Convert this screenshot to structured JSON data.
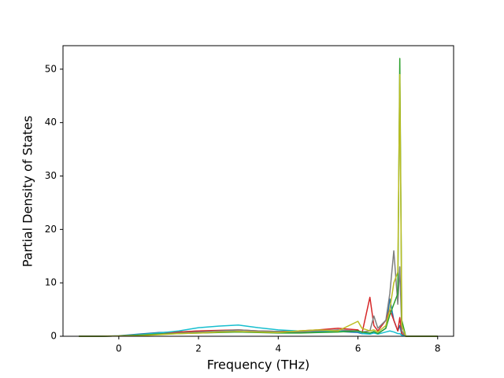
{
  "chart_data": {
    "type": "line",
    "xlabel": "Frequency (THz)",
    "ylabel": "Partial Density of States",
    "x": [
      -1,
      -0.5,
      0,
      0.5,
      1,
      1.5,
      2,
      2.5,
      3,
      3.5,
      4,
      4.5,
      5,
      5.5,
      6,
      6.1,
      6.3,
      6.4,
      6.5,
      6.7,
      6.8,
      6.9,
      7.0,
      7.05,
      7.1,
      7.2,
      8
    ],
    "series": [
      {
        "color": "#1f77b4",
        "values": [
          0,
          0,
          0.1,
          0.4,
          0.7,
          0.8,
          1,
          1,
          0.9,
          0.8,
          0.7,
          0.8,
          1,
          0.9,
          0.7,
          0.5,
          0.6,
          0.7,
          0.5,
          1.5,
          7,
          3,
          1,
          2,
          0.3,
          0,
          0
        ]
      },
      {
        "color": "#d62728",
        "values": [
          0,
          0,
          0.05,
          0.3,
          0.6,
          0.8,
          1,
          1.1,
          1.2,
          1,
          0.9,
          1,
          1.2,
          1.5,
          1.2,
          0.5,
          7.3,
          2,
          1,
          3,
          5,
          3,
          1,
          3.5,
          0.5,
          0,
          0
        ]
      },
      {
        "color": "#17becf",
        "values": [
          0,
          0,
          0.05,
          0.3,
          0.6,
          1,
          1.6,
          1.9,
          2.1,
          1.6,
          1.2,
          1,
          0.8,
          0.9,
          1,
          0.5,
          0.4,
          0.6,
          0.4,
          0.8,
          1,
          0.8,
          0.5,
          0.5,
          0.2,
          0,
          0
        ]
      },
      {
        "color": "#7f7f7f",
        "values": [
          0,
          0,
          0.05,
          0.2,
          0.4,
          0.6,
          0.8,
          1,
          1.2,
          1,
          0.9,
          0.8,
          1,
          1.2,
          1,
          0.8,
          1,
          3.8,
          1.5,
          3,
          8,
          16,
          6,
          13,
          1,
          0,
          0
        ]
      },
      {
        "color": "#2ca02c",
        "values": [
          0,
          0,
          0.05,
          0.2,
          0.4,
          0.5,
          0.6,
          0.7,
          0.8,
          0.7,
          0.6,
          0.6,
          0.7,
          0.8,
          1,
          0.8,
          0.6,
          0.9,
          0.5,
          1.5,
          4,
          6,
          8,
          52,
          3,
          0,
          0
        ]
      },
      {
        "color": "#bcbd22",
        "values": [
          0,
          0,
          0.05,
          0.1,
          0.3,
          0.5,
          0.6,
          0.8,
          0.9,
          0.8,
          0.7,
          1,
          1.2,
          1,
          2.8,
          1.5,
          1,
          1.2,
          0.8,
          2,
          5,
          10,
          12,
          49,
          2,
          0,
          0
        ]
      }
    ],
    "xlim": [
      -1.4,
      8.4
    ],
    "ylim": [
      0,
      54.4
    ],
    "xticks": [
      0,
      2,
      4,
      6,
      8
    ],
    "yticks": [
      0,
      10,
      20,
      30,
      40,
      50
    ]
  }
}
